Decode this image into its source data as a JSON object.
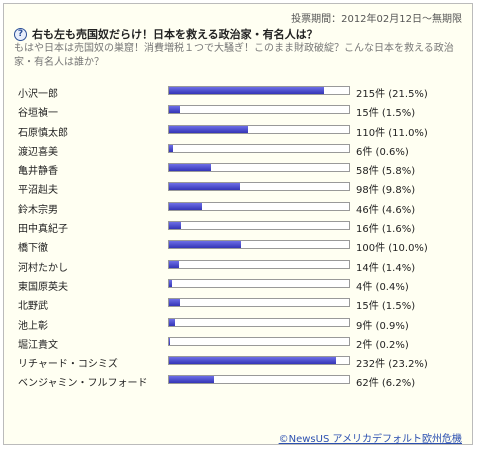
{
  "period": "投票期間：2012年02月12日～無期限",
  "title": "右も左も売国奴だらけ！日本を救える政治家・有名人は？",
  "description": "もはや日本は売国奴の巣窟！消費増税１つで大騒ぎ！このまま財政破綻？こんな日本を救える政治家・有名人は誰か？",
  "icon": "question-icon",
  "bar_color": "#4b4cd0",
  "items": [
    {
      "name": "小沢一郎",
      "count": "215件 (21.5%)",
      "pct": 21.5
    },
    {
      "name": "谷垣禎一",
      "count": "15件 (1.5%)",
      "pct": 1.5
    },
    {
      "name": "石原慎太郎",
      "count": "110件 (11.0%)",
      "pct": 11.0
    },
    {
      "name": "渡辺喜美",
      "count": "6件 (0.6%)",
      "pct": 0.6
    },
    {
      "name": "亀井静香",
      "count": "58件 (5.8%)",
      "pct": 5.8
    },
    {
      "name": "平沼赳夫",
      "count": "98件 (9.8%)",
      "pct": 9.8
    },
    {
      "name": "鈴木宗男",
      "count": "46件 (4.6%)",
      "pct": 4.6
    },
    {
      "name": "田中真紀子",
      "count": "16件 (1.6%)",
      "pct": 1.6
    },
    {
      "name": "橋下徹",
      "count": "100件 (10.0%)",
      "pct": 10.0
    },
    {
      "name": "河村たかし",
      "count": "14件 (1.4%)",
      "pct": 1.4
    },
    {
      "name": "東国原英夫",
      "count": "4件 (0.4%)",
      "pct": 0.4
    },
    {
      "name": "北野武",
      "count": "15件 (1.5%)",
      "pct": 1.5
    },
    {
      "name": "池上彰",
      "count": "9件 (0.9%)",
      "pct": 0.9
    },
    {
      "name": "堀江貴文",
      "count": "2件 (0.2%)",
      "pct": 0.2
    },
    {
      "name": "リチャード・コシミズ",
      "count": "232件 (23.2%)",
      "pct": 23.2
    },
    {
      "name": "ベンジャミン・フルフォード",
      "count": "62件 (6.2%)",
      "pct": 6.2
    }
  ],
  "footer_link": "©NewsUS アメリカデフォルト欧州危機"
}
